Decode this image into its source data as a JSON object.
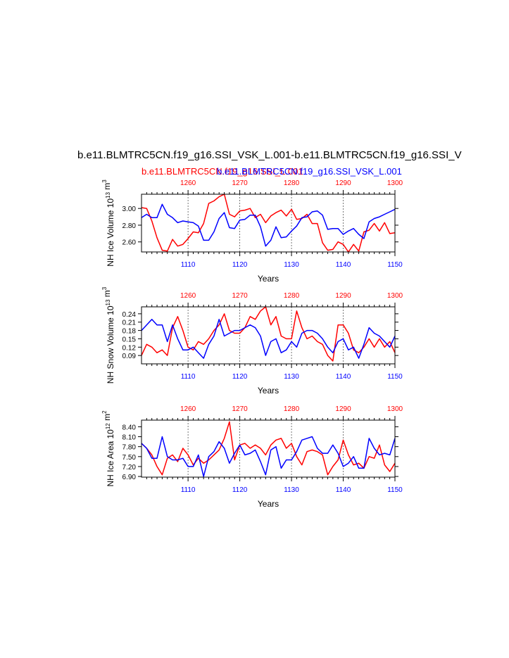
{
  "figure": {
    "title": "b.e11.BLMTRC5CN.f19_g16.SSI_VSK_L.001-b.e11.BLMTRC5CN.f19_g16.SSI_V",
    "subtitle_red": "b.e11.BLMTRC5CN.f19_g16.SSI_L.001",
    "subtitle_blue": "b.e11.BLMTRC5CN.f19_g16.SSI_VSK_L.001",
    "colors": {
      "red": "#ff0000",
      "blue": "#0000ff",
      "axis": "#000000",
      "grid": "#555555"
    }
  },
  "chart_data": [
    {
      "type": "line",
      "ylabel": "NH Ice Volume 10",
      "ylabel_exp": "13",
      "ylabel_unit": "m",
      "ylabel_unit_exp": "3",
      "xlabel": "Years",
      "xlim_bottom": [
        1101,
        1150
      ],
      "xlim_top": [
        1251,
        1300
      ],
      "ylim": [
        2.48,
        3.17
      ],
      "yticks": [
        2.6,
        2.8,
        3.0
      ],
      "ytick_labels": [
        "2.60",
        "2.80",
        "3.00"
      ],
      "xticks_bottom": [
        1110,
        1120,
        1130,
        1140,
        1150
      ],
      "xticks_top": [
        1260,
        1270,
        1280,
        1290,
        1300
      ],
      "series": [
        {
          "name": "b.e11.BLMTRC5CN.f19_g16.SSI_L.001",
          "color": "#ff0000",
          "axis": "top",
          "x": [
            1251,
            1252,
            1253,
            1254,
            1255,
            1256,
            1257,
            1258,
            1259,
            1260,
            1261,
            1262,
            1263,
            1264,
            1265,
            1266,
            1267,
            1268,
            1269,
            1270,
            1271,
            1272,
            1273,
            1274,
            1275,
            1276,
            1277,
            1278,
            1279,
            1280,
            1281,
            1282,
            1283,
            1284,
            1285,
            1286,
            1287,
            1288,
            1289,
            1290,
            1291,
            1292,
            1293,
            1294,
            1295,
            1296,
            1297,
            1298,
            1299,
            1300
          ],
          "values": [
            3.01,
            3.0,
            2.85,
            2.65,
            2.5,
            2.49,
            2.63,
            2.55,
            2.57,
            2.64,
            2.72,
            2.71,
            2.82,
            3.06,
            3.09,
            3.14,
            3.17,
            2.93,
            2.9,
            2.97,
            2.98,
            3.0,
            2.89,
            2.93,
            2.83,
            2.91,
            2.95,
            2.98,
            2.91,
            2.99,
            2.87,
            2.88,
            2.93,
            2.82,
            2.82,
            2.59,
            2.5,
            2.51,
            2.6,
            2.57,
            2.48,
            2.57,
            2.49,
            2.72,
            2.74,
            2.82,
            2.73,
            2.83,
            2.7,
            2.71
          ]
        },
        {
          "name": "b.e11.BLMTRC5CN.f19_g16.SSI_VSK_L.001",
          "color": "#0000ff",
          "axis": "bottom",
          "x": [
            1101,
            1102,
            1103,
            1104,
            1105,
            1106,
            1107,
            1108,
            1109,
            1110,
            1111,
            1112,
            1113,
            1114,
            1115,
            1116,
            1117,
            1118,
            1119,
            1120,
            1121,
            1122,
            1123,
            1124,
            1125,
            1126,
            1127,
            1128,
            1129,
            1130,
            1131,
            1132,
            1133,
            1134,
            1135,
            1136,
            1137,
            1138,
            1139,
            1140,
            1141,
            1142,
            1143,
            1144,
            1145,
            1146,
            1147,
            1148,
            1149,
            1150
          ],
          "values": [
            2.89,
            2.93,
            2.89,
            2.89,
            3.05,
            2.93,
            2.89,
            2.83,
            2.85,
            2.84,
            2.83,
            2.79,
            2.62,
            2.62,
            2.72,
            2.88,
            2.95,
            2.77,
            2.76,
            2.86,
            2.87,
            2.92,
            2.92,
            2.78,
            2.55,
            2.62,
            2.78,
            2.65,
            2.66,
            2.73,
            2.79,
            2.89,
            2.9,
            2.96,
            2.97,
            2.92,
            2.75,
            2.76,
            2.76,
            2.69,
            2.73,
            2.76,
            2.69,
            2.64,
            2.84,
            2.88,
            2.9,
            2.93,
            2.96,
            2.99
          ]
        }
      ]
    },
    {
      "type": "line",
      "ylabel": "NH Snow Volume 10",
      "ylabel_exp": "13",
      "ylabel_unit": "m",
      "ylabel_unit_exp": "3",
      "xlabel": "Years",
      "xlim_bottom": [
        1101,
        1150
      ],
      "xlim_top": [
        1251,
        1300
      ],
      "ylim": [
        0.06,
        0.265
      ],
      "yticks": [
        0.09,
        0.12,
        0.15,
        0.18,
        0.21,
        0.24
      ],
      "ytick_labels": [
        "0.09",
        "0.12",
        "0.15",
        "0.18",
        "0.21",
        "0.24"
      ],
      "xticks_bottom": [
        1110,
        1120,
        1130,
        1140,
        1150
      ],
      "xticks_top": [
        1260,
        1270,
        1280,
        1290,
        1300
      ],
      "series": [
        {
          "name": "b.e11.BLMTRC5CN.f19_g16.SSI_L.001",
          "color": "#ff0000",
          "axis": "top",
          "x": [
            1251,
            1252,
            1253,
            1254,
            1255,
            1256,
            1257,
            1258,
            1259,
            1260,
            1261,
            1262,
            1263,
            1264,
            1265,
            1266,
            1267,
            1268,
            1269,
            1270,
            1271,
            1272,
            1273,
            1274,
            1275,
            1276,
            1277,
            1278,
            1279,
            1280,
            1281,
            1282,
            1283,
            1284,
            1285,
            1286,
            1287,
            1288,
            1289,
            1290,
            1291,
            1292,
            1293,
            1294,
            1295,
            1296,
            1297,
            1298,
            1299,
            1300
          ],
          "values": [
            0.09,
            0.13,
            0.12,
            0.1,
            0.11,
            0.09,
            0.19,
            0.23,
            0.18,
            0.12,
            0.11,
            0.14,
            0.13,
            0.15,
            0.18,
            0.2,
            0.24,
            0.18,
            0.17,
            0.17,
            0.19,
            0.23,
            0.22,
            0.25,
            0.265,
            0.2,
            0.23,
            0.16,
            0.15,
            0.15,
            0.25,
            0.19,
            0.15,
            0.16,
            0.14,
            0.13,
            0.09,
            0.07,
            0.2,
            0.2,
            0.17,
            0.11,
            0.1,
            0.12,
            0.15,
            0.12,
            0.15,
            0.12,
            0.14,
            0.1
          ]
        },
        {
          "name": "b.e11.BLMTRC5CN.f19_g16.SSI_VSK_L.001",
          "color": "#0000ff",
          "axis": "bottom",
          "x": [
            1101,
            1102,
            1103,
            1104,
            1105,
            1106,
            1107,
            1108,
            1109,
            1110,
            1111,
            1112,
            1113,
            1114,
            1115,
            1116,
            1117,
            1118,
            1119,
            1120,
            1121,
            1122,
            1123,
            1124,
            1125,
            1126,
            1127,
            1128,
            1129,
            1130,
            1131,
            1132,
            1133,
            1134,
            1135,
            1136,
            1137,
            1138,
            1139,
            1140,
            1141,
            1142,
            1143,
            1144,
            1145,
            1146,
            1147,
            1148,
            1149,
            1150
          ],
          "values": [
            0.18,
            0.2,
            0.22,
            0.2,
            0.2,
            0.14,
            0.2,
            0.15,
            0.11,
            0.11,
            0.12,
            0.1,
            0.08,
            0.13,
            0.16,
            0.22,
            0.16,
            0.17,
            0.18,
            0.18,
            0.19,
            0.2,
            0.19,
            0.16,
            0.09,
            0.14,
            0.15,
            0.1,
            0.11,
            0.14,
            0.12,
            0.17,
            0.18,
            0.18,
            0.17,
            0.15,
            0.12,
            0.1,
            0.14,
            0.15,
            0.11,
            0.12,
            0.08,
            0.13,
            0.19,
            0.17,
            0.16,
            0.14,
            0.12,
            0.16
          ]
        }
      ]
    },
    {
      "type": "line",
      "ylabel": "NH Ice Area 10",
      "ylabel_exp": "12",
      "ylabel_unit": "m",
      "ylabel_unit_exp": "2",
      "xlabel": "Years",
      "xlim_bottom": [
        1101,
        1150
      ],
      "xlim_top": [
        1251,
        1300
      ],
      "ylim": [
        6.88,
        8.6
      ],
      "yticks": [
        6.9,
        7.2,
        7.5,
        7.8,
        8.1,
        8.4
      ],
      "ytick_labels": [
        "6.90",
        "7.20",
        "7.50",
        "7.80",
        "8.10",
        "8.40"
      ],
      "xticks_bottom": [
        1110,
        1120,
        1130,
        1140,
        1150
      ],
      "xticks_top": [
        1260,
        1270,
        1280,
        1290,
        1300
      ],
      "series": [
        {
          "name": "b.e11.BLMTRC5CN.f19_g16.SSI_L.001",
          "color": "#ff0000",
          "axis": "top",
          "x": [
            1251,
            1252,
            1253,
            1254,
            1255,
            1256,
            1257,
            1258,
            1259,
            1260,
            1261,
            1262,
            1263,
            1264,
            1265,
            1266,
            1267,
            1268,
            1269,
            1270,
            1271,
            1272,
            1273,
            1274,
            1275,
            1276,
            1277,
            1278,
            1279,
            1280,
            1281,
            1282,
            1283,
            1284,
            1285,
            1286,
            1287,
            1288,
            1289,
            1290,
            1291,
            1292,
            1293,
            1294,
            1295,
            1296,
            1297,
            1298,
            1299,
            1300
          ],
          "values": [
            7.9,
            7.75,
            7.55,
            7.2,
            6.95,
            7.45,
            7.55,
            7.35,
            7.75,
            7.55,
            7.25,
            7.45,
            7.3,
            7.4,
            7.55,
            7.7,
            8.05,
            8.55,
            7.4,
            7.85,
            7.9,
            7.75,
            7.85,
            7.75,
            7.55,
            7.85,
            8.0,
            8.05,
            7.75,
            7.9,
            7.5,
            7.25,
            7.65,
            7.7,
            7.65,
            7.55,
            6.95,
            7.2,
            7.4,
            8.0,
            7.55,
            7.25,
            7.3,
            7.15,
            7.5,
            7.45,
            7.85,
            7.25,
            7.05,
            7.3
          ]
        },
        {
          "name": "b.e11.BLMTRC5CN.f19_g16.SSI_VSK_L.001",
          "color": "#0000ff",
          "axis": "bottom",
          "x": [
            1101,
            1102,
            1103,
            1104,
            1105,
            1106,
            1107,
            1108,
            1109,
            1110,
            1111,
            1112,
            1113,
            1114,
            1115,
            1116,
            1117,
            1118,
            1119,
            1120,
            1121,
            1122,
            1123,
            1124,
            1125,
            1126,
            1127,
            1128,
            1129,
            1130,
            1131,
            1132,
            1133,
            1134,
            1135,
            1136,
            1137,
            1138,
            1139,
            1140,
            1141,
            1142,
            1143,
            1144,
            1145,
            1146,
            1147,
            1148,
            1149,
            1150
          ],
          "values": [
            7.9,
            7.75,
            7.45,
            7.45,
            8.1,
            7.5,
            7.4,
            7.4,
            7.45,
            7.2,
            7.2,
            7.55,
            6.9,
            7.5,
            7.65,
            7.95,
            7.75,
            7.3,
            7.6,
            7.85,
            7.55,
            7.6,
            7.7,
            7.35,
            6.95,
            7.7,
            7.8,
            7.15,
            7.4,
            7.4,
            7.65,
            8.0,
            8.05,
            8.1,
            7.75,
            7.6,
            7.6,
            7.85,
            7.6,
            7.2,
            7.3,
            7.5,
            7.15,
            7.15,
            8.05,
            7.75,
            7.55,
            7.6,
            7.55,
            8.05
          ]
        }
      ]
    }
  ]
}
